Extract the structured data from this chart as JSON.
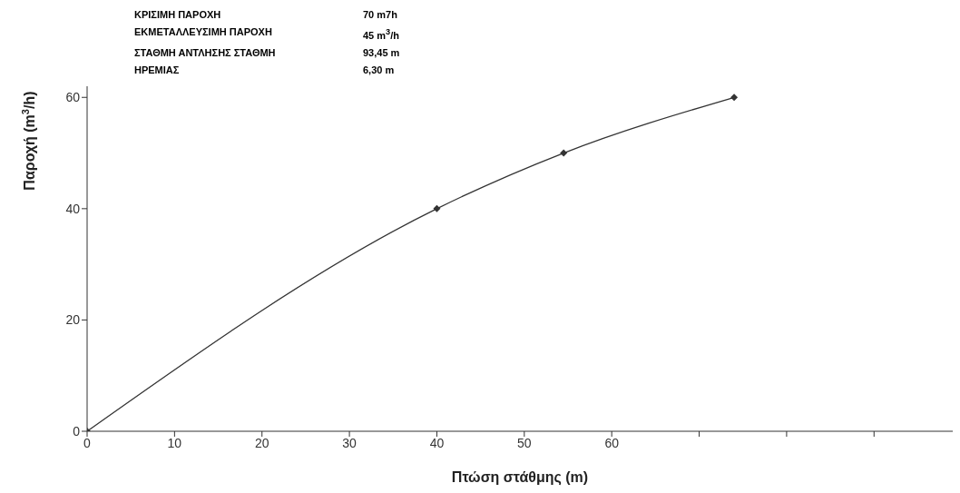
{
  "chart_data": {
    "type": "line",
    "xlabel": "Πτώση στάθμης (m)",
    "ylabel": "Παροχή  (m$^{3}$/h)",
    "annotations": [
      "ΚΡΙΣΙΜΗ ΠΑΡΟΧΗ",
      "70   m7h",
      "ΕΚΜΕΤΑΛΛΕΥΣΙΜΗ ΠΑΡΟΧΗ",
      "45  m$^{3}$/h",
      "ΣΤΑΘΜΗ ΑΝΤΛΗΣΗΣ ΣΤΑΘΜΗ",
      "93,45  m",
      "ΗΡΕΜΙΑΣ",
      "6,30 m"
    ],
    "x": [
      0,
      40,
      54.5,
      74
    ],
    "series": [
      {
        "color": "#333333",
        "values": [
          0,
          40,
          50,
          60
        ]
      }
    ],
    "xlim": [
      0,
      99
    ],
    "xticks": [
      0,
      10,
      20,
      30,
      40,
      50,
      60,
      {
        "value": 70,
        "label": null
      },
      {
        "value": 80,
        "label": null
      },
      {
        "value": 90,
        "label": null
      }
    ],
    "ylim": [
      0,
      62
    ],
    "yticks": [
      0,
      20,
      40,
      60
    ],
    "grid": false,
    "legend": false,
    "marker": "diamond",
    "line_style": "solid"
  }
}
